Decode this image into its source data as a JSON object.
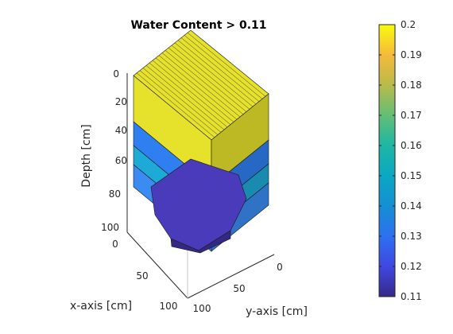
{
  "chart_data": {
    "type": "bar3",
    "title": "Water Content > 0.11",
    "zlabel": "Depth [cm]",
    "xlabel": "x-axis [cm]",
    "ylabel": "y-axis [cm]",
    "zlim": [
      0,
      100
    ],
    "xlim": [
      0,
      100
    ],
    "ylim": [
      0,
      100
    ],
    "z_ticks": [
      "0",
      "20",
      "40",
      "60",
      "80",
      "100"
    ],
    "x_ticks": [
      "0",
      "50",
      "100"
    ],
    "y_ticks": [
      "0",
      "50",
      "100"
    ],
    "colorbar": {
      "colormap": "parula",
      "min": 0.11,
      "max": 0.2,
      "ticks": [
        "0.11",
        "0.12",
        "0.13",
        "0.14",
        "0.15",
        "0.16",
        "0.17",
        "0.18",
        "0.19",
        "0.2"
      ]
    },
    "layers": [
      {
        "depth_range": [
          0,
          30
        ],
        "water_content": 0.195,
        "color": "#E6E22C"
      },
      {
        "depth_range": [
          30,
          45
        ],
        "water_content": 0.135,
        "color": "#2F7FF0"
      },
      {
        "depth_range": [
          45,
          60
        ],
        "water_content": 0.148,
        "color": "#1DAAD6"
      },
      {
        "depth_range": [
          60,
          80
        ],
        "water_content": 0.13,
        "color": "#3B8BF2"
      },
      {
        "depth_range": [
          80,
          100
        ],
        "water_content": 0.115,
        "color": "#4A3BBA"
      }
    ]
  }
}
